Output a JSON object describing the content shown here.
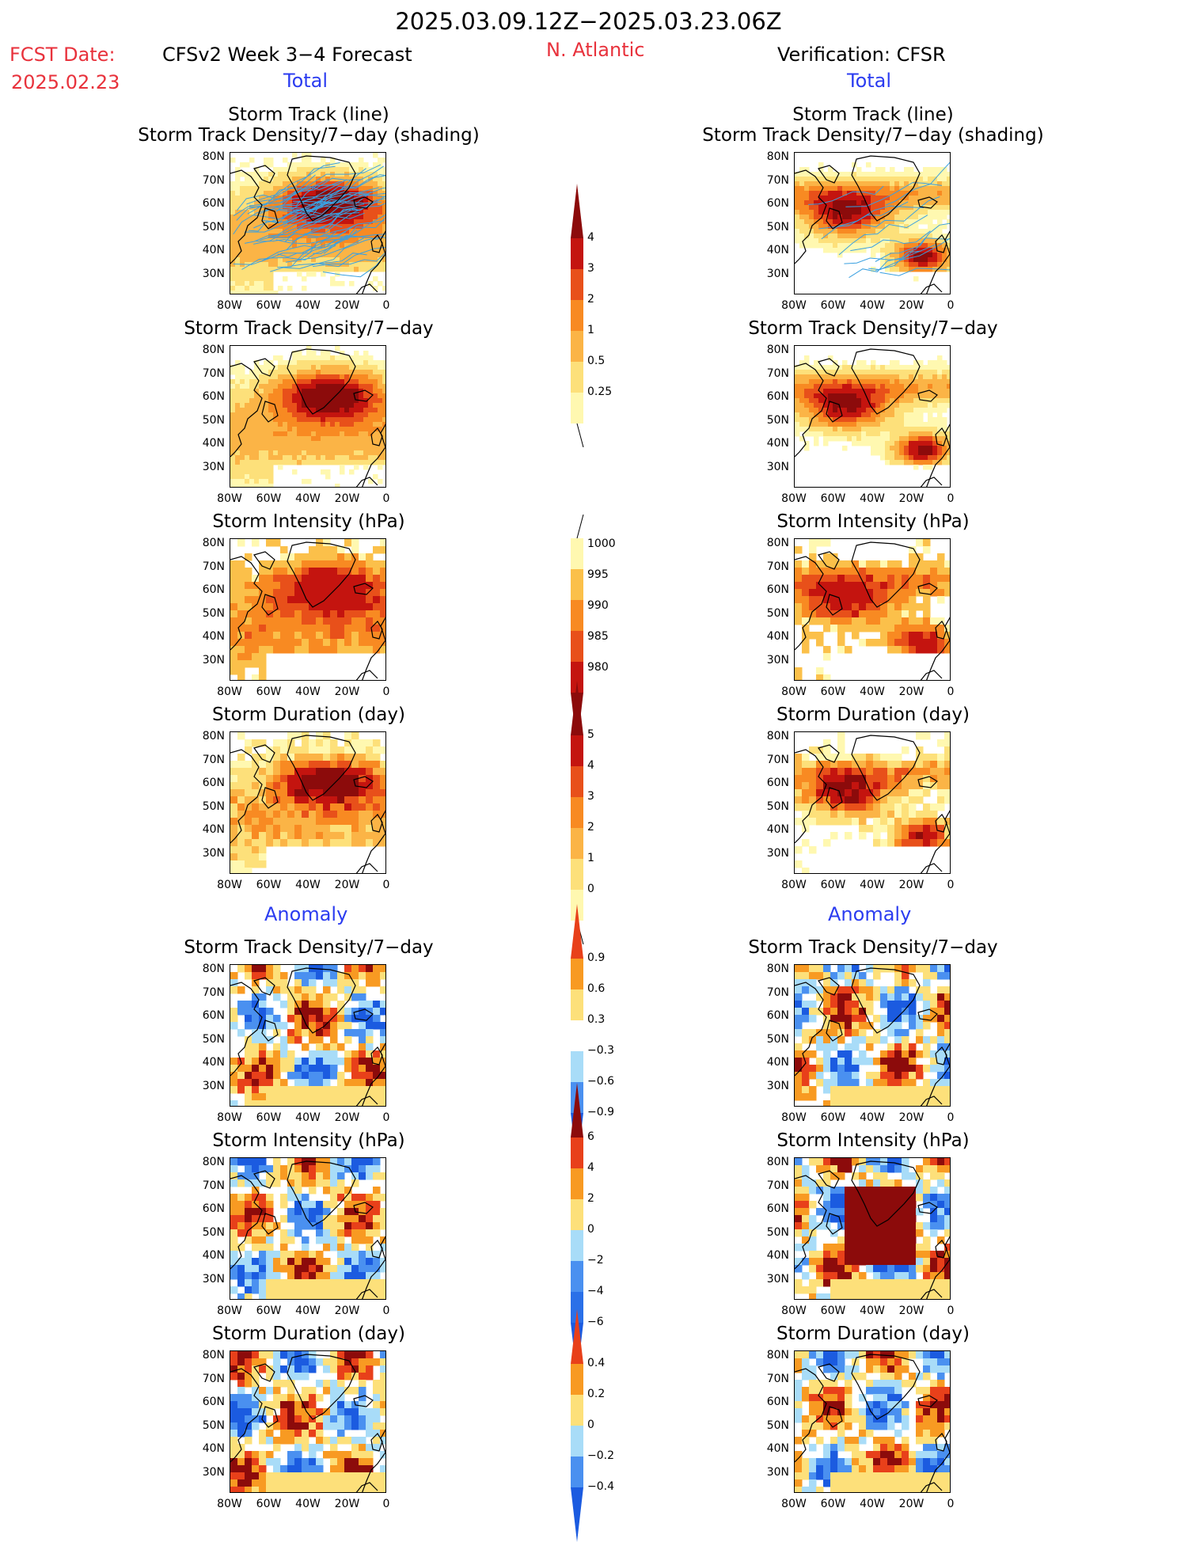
{
  "header": {
    "period": "2025.03.09.12Z−2025.03.23.06Z",
    "fcst_label": "FCST Date:",
    "fcst_date": "2025.02.23",
    "model": "CFSv2 Week 3−4 Forecast",
    "region": "N. Atlantic",
    "verification": "Verification: CFSR",
    "left_total": "Total",
    "right_total": "Total",
    "left_anomaly": "Anomaly",
    "right_anomaly": "Anomaly"
  },
  "panel_titles": {
    "track_line": "Storm Track (line)",
    "track_shade": "Storm Track Density/7−day (shading)",
    "density": "Storm Track Density/7−day",
    "intensity": "Storm Intensity (hPa)",
    "duration": "Storm Duration (day)"
  },
  "axes": {
    "lat_ticks": [
      "80N",
      "70N",
      "60N",
      "50N",
      "40N",
      "30N"
    ],
    "lon_ticks": [
      "80W",
      "60W",
      "40W",
      "20W",
      "0"
    ]
  },
  "colors": {
    "density_total": [
      "#fff8b0",
      "#fde07a",
      "#fbb446",
      "#f88a22",
      "#e8501a",
      "#c4140f",
      "#8c0b0b"
    ],
    "intensity_total": [
      "#fff8b0",
      "#fbc04a",
      "#f88a22",
      "#e8501a",
      "#c4140f",
      "#8c0b0b"
    ],
    "anomaly": [
      "#1b5be0",
      "#4a90f0",
      "#a8dcf8",
      "#ffffff",
      "#fde07a",
      "#f89a22",
      "#e8401a",
      "#8c0b0b"
    ],
    "track_line": "#3aa0e0",
    "coast": "#000000"
  },
  "colorbars": {
    "density_total": [
      "4",
      "3",
      "2",
      "1",
      "0.5",
      "0.25"
    ],
    "intensity_total": [
      "1000",
      "995",
      "990",
      "985",
      "980"
    ],
    "duration_total": [
      "5",
      "4",
      "3",
      "2",
      "1",
      "0"
    ],
    "density_anom": [
      "0.9",
      "0.6",
      "0.3",
      "−0.3",
      "−0.6",
      "−0.9"
    ],
    "intensity_anom": [
      "6",
      "4",
      "2",
      "0",
      "−2",
      "−4",
      "−6"
    ],
    "duration_anom": [
      "0.4",
      "0.2",
      "0",
      "−0.2",
      "−0.4"
    ]
  },
  "chart_data": [
    {
      "type": "heatmap",
      "title": "Storm Track (line) / Storm Track Density/7−day (shading)",
      "column": "CFSv2 Week 3−4 Forecast",
      "section": "Total",
      "legend": [
        "0.25",
        "0.5",
        "1",
        "2",
        "3",
        "4"
      ]
    },
    {
      "type": "heatmap",
      "title": "Storm Track Density/7−day",
      "column": "CFSv2 Week 3−4 Forecast",
      "section": "Total",
      "legend": [
        "0.25",
        "0.5",
        "1",
        "2",
        "3",
        "4"
      ]
    },
    {
      "type": "heatmap",
      "title": "Storm Intensity (hPa)",
      "column": "CFSv2 Week 3−4 Forecast",
      "section": "Total",
      "legend": [
        "980",
        "985",
        "990",
        "995",
        "1000"
      ]
    },
    {
      "type": "heatmap",
      "title": "Storm Duration (day)",
      "column": "CFSv2 Week 3−4 Forecast",
      "section": "Total",
      "legend": [
        "0",
        "1",
        "2",
        "3",
        "4",
        "5"
      ]
    },
    {
      "type": "heatmap",
      "title": "Storm Track Density/7−day",
      "column": "CFSv2 Week 3−4 Forecast",
      "section": "Anomaly",
      "legend": [
        "−0.9",
        "−0.6",
        "−0.3",
        "0.3",
        "0.6",
        "0.9"
      ]
    },
    {
      "type": "heatmap",
      "title": "Storm Intensity (hPa)",
      "column": "CFSv2 Week 3−4 Forecast",
      "section": "Anomaly",
      "legend": [
        "−6",
        "−4",
        "−2",
        "0",
        "2",
        "4",
        "6"
      ]
    },
    {
      "type": "heatmap",
      "title": "Storm Duration (day)",
      "column": "CFSv2 Week 3−4 Forecast",
      "section": "Anomaly",
      "legend": [
        "−0.4",
        "−0.2",
        "0",
        "0.2",
        "0.4"
      ]
    },
    {
      "type": "heatmap",
      "title": "Storm Track (line) / Storm Track Density/7−day (shading)",
      "column": "Verification: CFSR",
      "section": "Total"
    },
    {
      "type": "heatmap",
      "title": "Storm Track Density/7−day",
      "column": "Verification: CFSR",
      "section": "Total"
    },
    {
      "type": "heatmap",
      "title": "Storm Intensity (hPa)",
      "column": "Verification: CFSR",
      "section": "Total"
    },
    {
      "type": "heatmap",
      "title": "Storm Duration (day)",
      "column": "Verification: CFSR",
      "section": "Total"
    },
    {
      "type": "heatmap",
      "title": "Storm Track Density/7−day",
      "column": "Verification: CFSR",
      "section": "Anomaly"
    },
    {
      "type": "heatmap",
      "title": "Storm Intensity (hPa)",
      "column": "Verification: CFSR",
      "section": "Anomaly"
    },
    {
      "type": "heatmap",
      "title": "Storm Duration (day)",
      "column": "Verification: CFSR",
      "section": "Anomaly"
    }
  ]
}
